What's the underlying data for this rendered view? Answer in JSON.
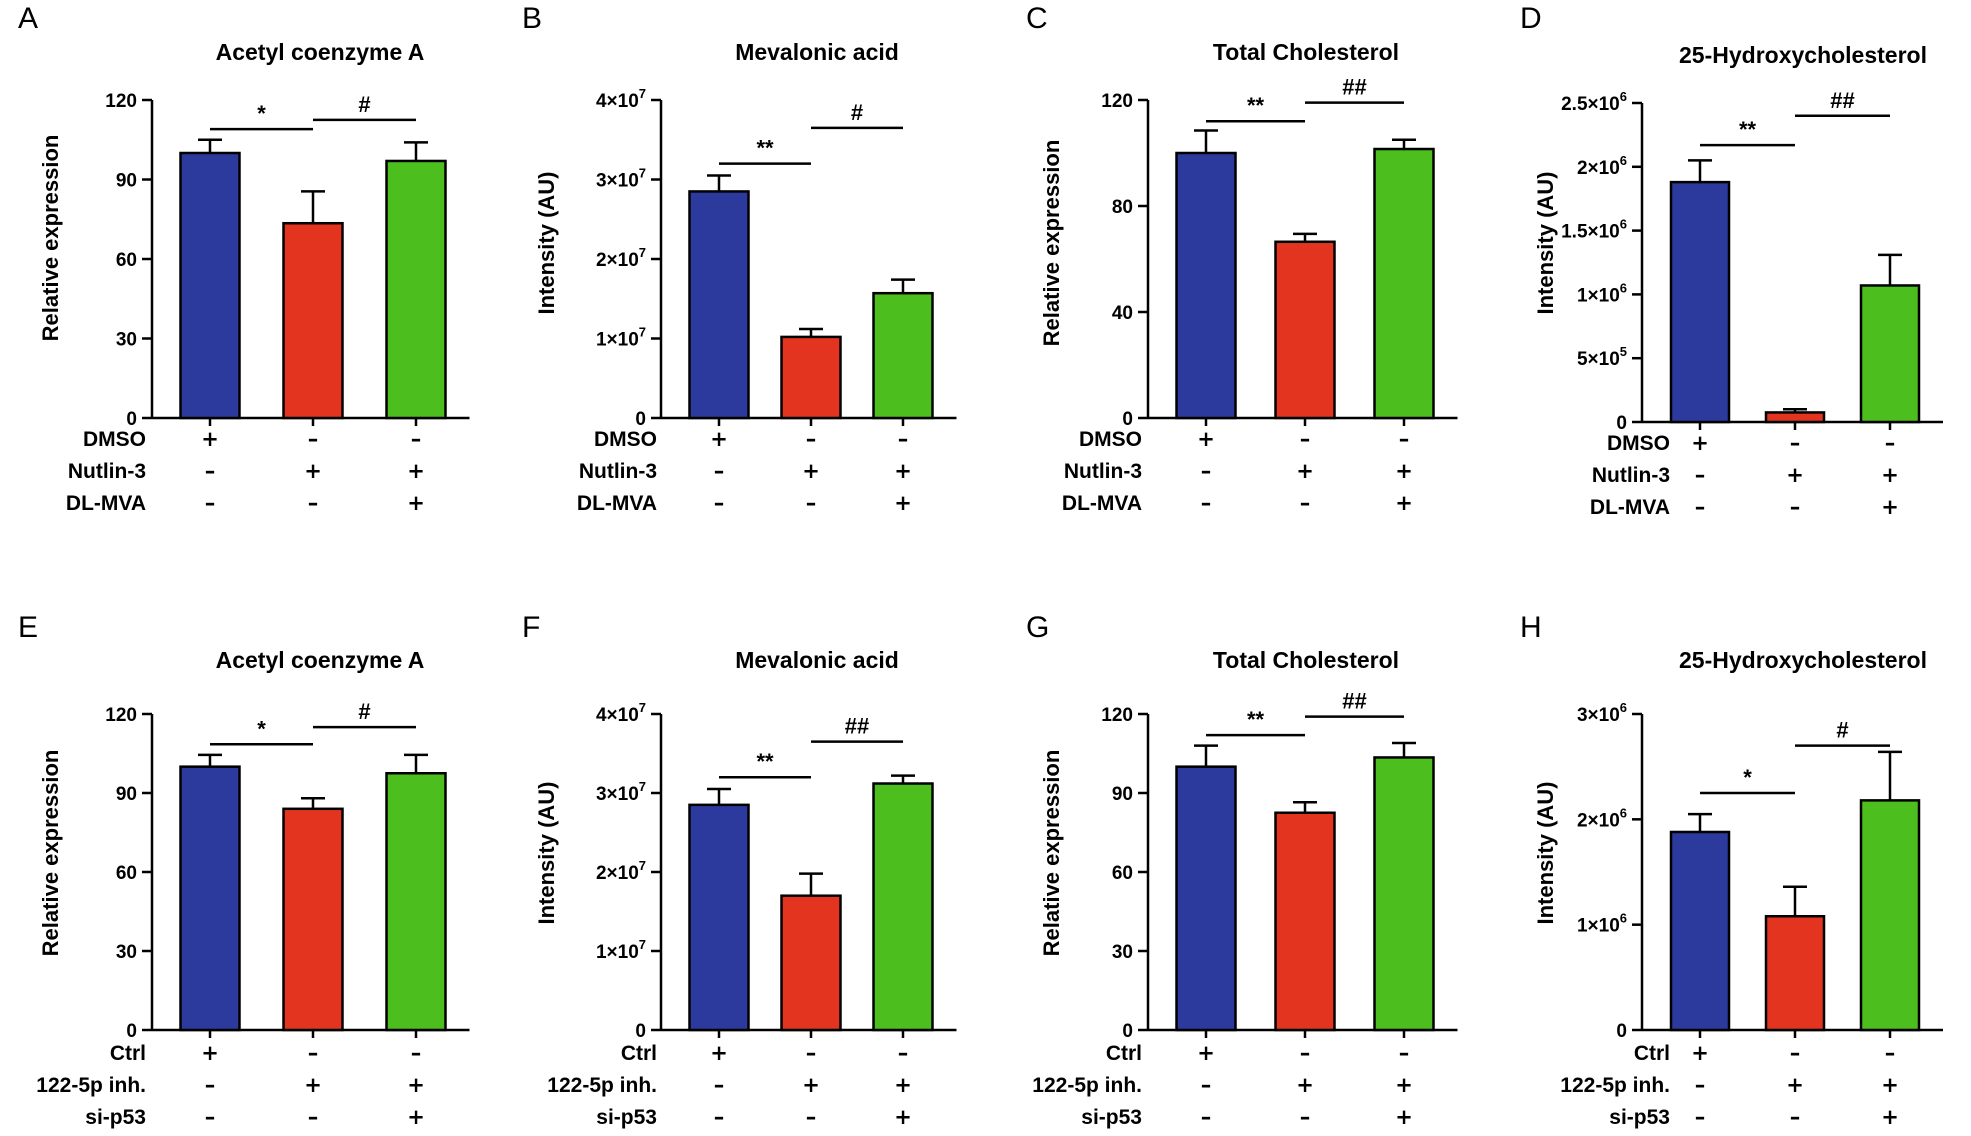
{
  "colors": {
    "blue": "#2b3a9c",
    "red": "#e3341f",
    "green": "#4cbe1e",
    "axis": "#000000"
  },
  "chart_data": [
    {
      "panel": "A",
      "type": "bar",
      "title": "Acetyl coenzyme A",
      "ylabel": "Relative expression",
      "ylim": [
        0,
        120
      ],
      "yticks": [
        {
          "v": 0,
          "base": "0"
        },
        {
          "v": 30,
          "base": "30"
        },
        {
          "v": 60,
          "base": "60"
        },
        {
          "v": 90,
          "base": "90"
        },
        {
          "v": 120,
          "base": "120"
        }
      ],
      "values": [
        100,
        73.5,
        97
      ],
      "errors": [
        5,
        12,
        7
      ],
      "significance": [
        {
          "from": 0,
          "to": 1,
          "y": 109,
          "label": "*"
        },
        {
          "from": 1,
          "to": 2,
          "y": 112.5,
          "label": "#"
        }
      ],
      "conditions": [
        {
          "label": "DMSO",
          "signs": [
            "+",
            "-",
            "-"
          ]
        },
        {
          "label": "Nutlin-3",
          "signs": [
            "-",
            "+",
            "+"
          ]
        },
        {
          "label": "DL-MVA",
          "signs": [
            "-",
            "-",
            "+"
          ]
        }
      ]
    },
    {
      "panel": "B",
      "type": "bar",
      "title": "Mevalonic acid",
      "ylabel": "Intensity (AU)",
      "ylim": [
        0,
        40000000
      ],
      "yticks": [
        {
          "v": 0,
          "base": "0"
        },
        {
          "v": 10000000,
          "base": "1×10",
          "exp": "7"
        },
        {
          "v": 20000000,
          "base": "2×10",
          "exp": "7"
        },
        {
          "v": 30000000,
          "base": "3×10",
          "exp": "7"
        },
        {
          "v": 40000000,
          "base": "4×10",
          "exp": "7"
        }
      ],
      "values": [
        28500000,
        10200000,
        15700000
      ],
      "errors": [
        2000000,
        1000000,
        1700000
      ],
      "significance": [
        {
          "from": 0,
          "to": 1,
          "y": 32000000,
          "label": "**"
        },
        {
          "from": 1,
          "to": 2,
          "y": 36500000,
          "label": "#"
        }
      ],
      "conditions": [
        {
          "label": "DMSO",
          "signs": [
            "+",
            "-",
            "-"
          ]
        },
        {
          "label": "Nutlin-3",
          "signs": [
            "-",
            "+",
            "+"
          ]
        },
        {
          "label": "DL-MVA",
          "signs": [
            "-",
            "-",
            "+"
          ]
        }
      ]
    },
    {
      "panel": "C",
      "type": "bar",
      "title": "Total Cholesterol",
      "ylabel": "Relative expression",
      "ylim": [
        0,
        120
      ],
      "yticks": [
        {
          "v": 0,
          "base": "0"
        },
        {
          "v": 40,
          "base": "40"
        },
        {
          "v": 80,
          "base": "80"
        },
        {
          "v": 120,
          "base": "120"
        }
      ],
      "values": [
        100,
        66.5,
        101.5
      ],
      "errors": [
        8.5,
        3,
        3.5
      ],
      "significance": [
        {
          "from": 0,
          "to": 1,
          "y": 112,
          "label": "**"
        },
        {
          "from": 1,
          "to": 2,
          "y": 119,
          "label": "##"
        }
      ],
      "conditions": [
        {
          "label": "DMSO",
          "signs": [
            "+",
            "-",
            "-"
          ]
        },
        {
          "label": "Nutlin-3",
          "signs": [
            "-",
            "+",
            "+"
          ]
        },
        {
          "label": "DL-MVA",
          "signs": [
            "-",
            "-",
            "+"
          ]
        }
      ]
    },
    {
      "panel": "D",
      "type": "bar",
      "title": "25-Hydroxycholesterol",
      "ylabel": "Intensity (AU)",
      "ylim": [
        0,
        2500000
      ],
      "yticks": [
        {
          "v": 0,
          "base": "0"
        },
        {
          "v": 500000,
          "base": "5×10",
          "exp": "5"
        },
        {
          "v": 1000000,
          "base": "1×10",
          "exp": "6"
        },
        {
          "v": 1500000,
          "base": "1.5×10",
          "exp": "6"
        },
        {
          "v": 2000000,
          "base": "2×10",
          "exp": "6"
        },
        {
          "v": 2500000,
          "base": "2.5×10",
          "exp": "6"
        }
      ],
      "values": [
        1880000,
        75000,
        1070000
      ],
      "errors": [
        170000,
        25000,
        240000
      ],
      "significance": [
        {
          "from": 0,
          "to": 1,
          "y": 2170000,
          "label": "**"
        },
        {
          "from": 1,
          "to": 2,
          "y": 2400000,
          "label": "##"
        }
      ],
      "conditions": [
        {
          "label": "DMSO",
          "signs": [
            "+",
            "-",
            "-"
          ]
        },
        {
          "label": "Nutlin-3",
          "signs": [
            "-",
            "+",
            "+"
          ]
        },
        {
          "label": "DL-MVA",
          "signs": [
            "-",
            "-",
            "+"
          ]
        }
      ]
    },
    {
      "panel": "E",
      "type": "bar",
      "title": "Acetyl coenzyme A",
      "ylabel": "Relative expression",
      "ylim": [
        0,
        120
      ],
      "yticks": [
        {
          "v": 0,
          "base": "0"
        },
        {
          "v": 30,
          "base": "30"
        },
        {
          "v": 60,
          "base": "60"
        },
        {
          "v": 90,
          "base": "90"
        },
        {
          "v": 120,
          "base": "120"
        }
      ],
      "values": [
        100,
        84,
        97.5
      ],
      "errors": [
        4.5,
        4,
        7
      ],
      "significance": [
        {
          "from": 0,
          "to": 1,
          "y": 108.5,
          "label": "*"
        },
        {
          "from": 1,
          "to": 2,
          "y": 115,
          "label": "#"
        }
      ],
      "conditions": [
        {
          "label": "Ctrl",
          "signs": [
            "+",
            "-",
            "-"
          ]
        },
        {
          "label": "122-5p inh.",
          "signs": [
            "-",
            "+",
            "+"
          ]
        },
        {
          "label": "si-p53",
          "signs": [
            "-",
            "-",
            "+"
          ]
        }
      ]
    },
    {
      "panel": "F",
      "type": "bar",
      "title": "Mevalonic acid",
      "ylabel": "Intensity (AU)",
      "ylim": [
        0,
        40000000
      ],
      "yticks": [
        {
          "v": 0,
          "base": "0"
        },
        {
          "v": 10000000,
          "base": "1×10",
          "exp": "7"
        },
        {
          "v": 20000000,
          "base": "2×10",
          "exp": "7"
        },
        {
          "v": 30000000,
          "base": "3×10",
          "exp": "7"
        },
        {
          "v": 40000000,
          "base": "4×10",
          "exp": "7"
        }
      ],
      "values": [
        28500000,
        17000000,
        31200000
      ],
      "errors": [
        2000000,
        2800000,
        1000000
      ],
      "significance": [
        {
          "from": 0,
          "to": 1,
          "y": 32000000,
          "label": "**"
        },
        {
          "from": 1,
          "to": 2,
          "y": 36500000,
          "label": "##"
        }
      ],
      "conditions": [
        {
          "label": "Ctrl",
          "signs": [
            "+",
            "-",
            "-"
          ]
        },
        {
          "label": "122-5p inh.",
          "signs": [
            "-",
            "+",
            "+"
          ]
        },
        {
          "label": "si-p53",
          "signs": [
            "-",
            "-",
            "+"
          ]
        }
      ]
    },
    {
      "panel": "G",
      "type": "bar",
      "title": "Total Cholesterol",
      "ylabel": "Relative expression",
      "ylim": [
        0,
        120
      ],
      "yticks": [
        {
          "v": 0,
          "base": "0"
        },
        {
          "v": 30,
          "base": "30"
        },
        {
          "v": 60,
          "base": "60"
        },
        {
          "v": 90,
          "base": "90"
        },
        {
          "v": 120,
          "base": "120"
        }
      ],
      "values": [
        100,
        82.5,
        103.5
      ],
      "errors": [
        8,
        4,
        5.5
      ],
      "significance": [
        {
          "from": 0,
          "to": 1,
          "y": 112,
          "label": "**"
        },
        {
          "from": 1,
          "to": 2,
          "y": 119,
          "label": "##"
        }
      ],
      "conditions": [
        {
          "label": "Ctrl",
          "signs": [
            "+",
            "-",
            "-"
          ]
        },
        {
          "label": "122-5p inh.",
          "signs": [
            "-",
            "+",
            "+"
          ]
        },
        {
          "label": "si-p53",
          "signs": [
            "-",
            "-",
            "+"
          ]
        }
      ]
    },
    {
      "panel": "H",
      "type": "bar",
      "title": "25-Hydroxycholesterol",
      "ylabel": "Intensity (AU)",
      "ylim": [
        0,
        3000000
      ],
      "yticks": [
        {
          "v": 0,
          "base": "0"
        },
        {
          "v": 1000000,
          "base": "1×10",
          "exp": "6"
        },
        {
          "v": 2000000,
          "base": "2×10",
          "exp": "6"
        },
        {
          "v": 3000000,
          "base": "3×10",
          "exp": "6"
        }
      ],
      "values": [
        1880000,
        1080000,
        2180000
      ],
      "errors": [
        170000,
        280000,
        460000
      ],
      "significance": [
        {
          "from": 0,
          "to": 1,
          "y": 2250000,
          "label": "*"
        },
        {
          "from": 1,
          "to": 2,
          "y": 2700000,
          "label": "#"
        }
      ],
      "conditions": [
        {
          "label": "Ctrl",
          "signs": [
            "+",
            "-",
            "-"
          ]
        },
        {
          "label": "122-5p inh.",
          "signs": [
            "-",
            "+",
            "+"
          ]
        },
        {
          "label": "si-p53",
          "signs": [
            "-",
            "-",
            "+"
          ]
        }
      ]
    }
  ]
}
